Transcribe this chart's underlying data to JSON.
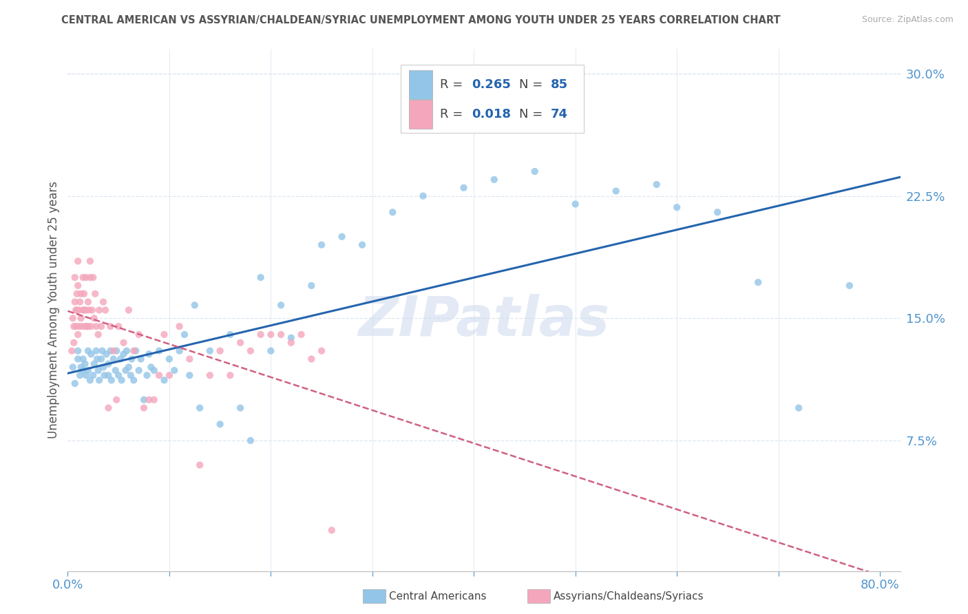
{
  "title": "CENTRAL AMERICAN VS ASSYRIAN/CHALDEAN/SYRIAC UNEMPLOYMENT AMONG YOUTH UNDER 25 YEARS CORRELATION CHART",
  "source": "Source: ZipAtlas.com",
  "ylabel": "Unemployment Among Youth under 25 years",
  "xlim": [
    0.0,
    0.82
  ],
  "ylim": [
    -0.005,
    0.315
  ],
  "yticks": [
    0.075,
    0.15,
    0.225,
    0.3
  ],
  "ytick_labels": [
    "7.5%",
    "15.0%",
    "22.5%",
    "30.0%"
  ],
  "blue_color": "#92c5e8",
  "blue_line_color": "#2464ae",
  "pink_color": "#f4a6bc",
  "pink_line_color": "#d06080",
  "title_color": "#555555",
  "axis_label_color": "#555555",
  "tick_color": "#4f94cd",
  "grid_color": "#dce6f0",
  "watermark": "ZIPatlas",
  "blue_R": 0.265,
  "pink_R": 0.018,
  "blue_N": 85,
  "pink_N": 74,
  "blue_x": [
    0.005,
    0.007,
    0.01,
    0.01,
    0.012,
    0.013,
    0.015,
    0.015,
    0.017,
    0.018,
    0.02,
    0.02,
    0.022,
    0.023,
    0.025,
    0.026,
    0.028,
    0.029,
    0.03,
    0.031,
    0.033,
    0.034,
    0.035,
    0.036,
    0.038,
    0.04,
    0.04,
    0.042,
    0.043,
    0.045,
    0.047,
    0.048,
    0.05,
    0.052,
    0.053,
    0.055,
    0.057,
    0.058,
    0.06,
    0.062,
    0.063,
    0.065,
    0.067,
    0.07,
    0.072,
    0.075,
    0.078,
    0.08,
    0.082,
    0.085,
    0.09,
    0.095,
    0.1,
    0.105,
    0.11,
    0.115,
    0.12,
    0.125,
    0.13,
    0.14,
    0.15,
    0.16,
    0.17,
    0.18,
    0.19,
    0.2,
    0.21,
    0.22,
    0.24,
    0.25,
    0.27,
    0.29,
    0.32,
    0.35,
    0.39,
    0.42,
    0.46,
    0.5,
    0.54,
    0.58,
    0.6,
    0.64,
    0.68,
    0.72,
    0.77
  ],
  "blue_y": [
    0.12,
    0.11,
    0.125,
    0.13,
    0.115,
    0.12,
    0.125,
    0.118,
    0.122,
    0.115,
    0.13,
    0.118,
    0.112,
    0.128,
    0.115,
    0.122,
    0.13,
    0.125,
    0.118,
    0.112,
    0.125,
    0.13,
    0.12,
    0.115,
    0.128,
    0.115,
    0.122,
    0.13,
    0.112,
    0.125,
    0.118,
    0.13,
    0.115,
    0.125,
    0.112,
    0.128,
    0.118,
    0.13,
    0.12,
    0.115,
    0.125,
    0.112,
    0.13,
    0.118,
    0.125,
    0.1,
    0.115,
    0.128,
    0.12,
    0.118,
    0.13,
    0.112,
    0.125,
    0.118,
    0.13,
    0.14,
    0.115,
    0.158,
    0.095,
    0.13,
    0.085,
    0.14,
    0.095,
    0.075,
    0.175,
    0.13,
    0.158,
    0.138,
    0.17,
    0.195,
    0.2,
    0.195,
    0.215,
    0.225,
    0.23,
    0.235,
    0.24,
    0.22,
    0.228,
    0.232,
    0.218,
    0.215,
    0.172,
    0.095,
    0.17
  ],
  "pink_x": [
    0.004,
    0.005,
    0.006,
    0.006,
    0.007,
    0.007,
    0.008,
    0.008,
    0.009,
    0.009,
    0.01,
    0.01,
    0.01,
    0.011,
    0.011,
    0.012,
    0.013,
    0.013,
    0.014,
    0.015,
    0.015,
    0.016,
    0.016,
    0.017,
    0.018,
    0.018,
    0.019,
    0.02,
    0.02,
    0.021,
    0.022,
    0.022,
    0.023,
    0.024,
    0.025,
    0.026,
    0.027,
    0.028,
    0.03,
    0.031,
    0.033,
    0.035,
    0.037,
    0.04,
    0.042,
    0.045,
    0.048,
    0.05,
    0.055,
    0.06,
    0.065,
    0.07,
    0.075,
    0.08,
    0.085,
    0.09,
    0.095,
    0.1,
    0.11,
    0.12,
    0.13,
    0.14,
    0.15,
    0.16,
    0.17,
    0.18,
    0.19,
    0.2,
    0.21,
    0.22,
    0.23,
    0.24,
    0.25,
    0.26
  ],
  "pink_y": [
    0.13,
    0.15,
    0.135,
    0.145,
    0.16,
    0.175,
    0.155,
    0.145,
    0.165,
    0.155,
    0.14,
    0.17,
    0.185,
    0.155,
    0.145,
    0.16,
    0.15,
    0.165,
    0.145,
    0.155,
    0.175,
    0.155,
    0.165,
    0.145,
    0.155,
    0.175,
    0.145,
    0.16,
    0.145,
    0.155,
    0.175,
    0.185,
    0.145,
    0.155,
    0.175,
    0.15,
    0.165,
    0.145,
    0.14,
    0.155,
    0.145,
    0.16,
    0.155,
    0.095,
    0.145,
    0.13,
    0.1,
    0.145,
    0.135,
    0.155,
    0.13,
    0.14,
    0.095,
    0.1,
    0.1,
    0.115,
    0.14,
    0.115,
    0.145,
    0.125,
    0.06,
    0.115,
    0.13,
    0.115,
    0.135,
    0.13,
    0.14,
    0.14,
    0.14,
    0.135,
    0.14,
    0.125,
    0.13,
    0.02
  ]
}
